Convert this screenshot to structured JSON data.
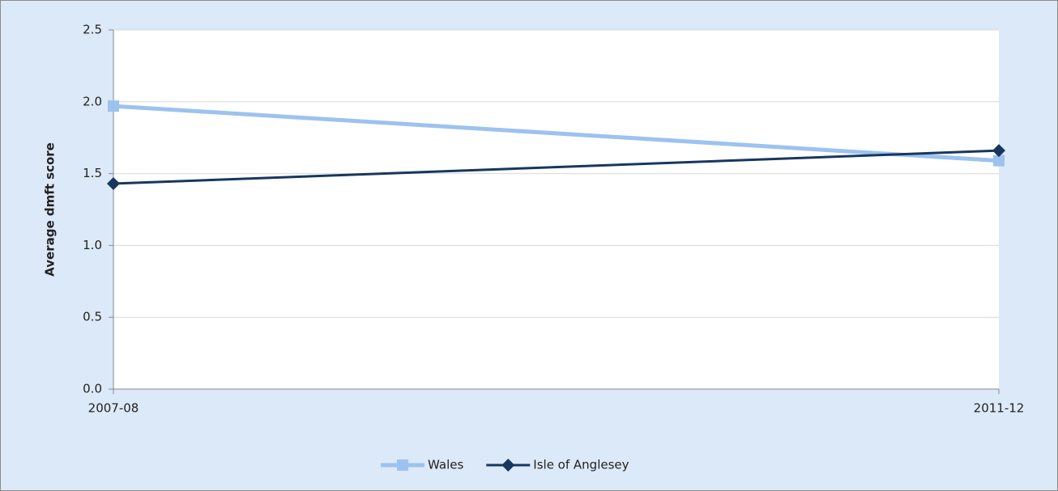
{
  "chart_data": {
    "type": "line",
    "y_label": "Average dmft score",
    "categories": [
      "2007-08",
      "2011-12"
    ],
    "series": [
      {
        "name": "Wales",
        "color": "#9cc2f0",
        "marker": "square",
        "values": [
          1.97,
          1.59
        ]
      },
      {
        "name": "Isle of Anglesey",
        "color": "#17375e",
        "marker": "diamond",
        "values": [
          1.43,
          1.66
        ]
      }
    ],
    "ylim": [
      0,
      2.5
    ],
    "yticks": [
      {
        "value": 0,
        "label": "0.0"
      },
      0.5,
      {
        "value": 1,
        "label": "1.0"
      },
      1.5,
      {
        "value": 2,
        "label": "2.0"
      },
      2.5
    ],
    "grid": true,
    "legend": "bottom"
  }
}
